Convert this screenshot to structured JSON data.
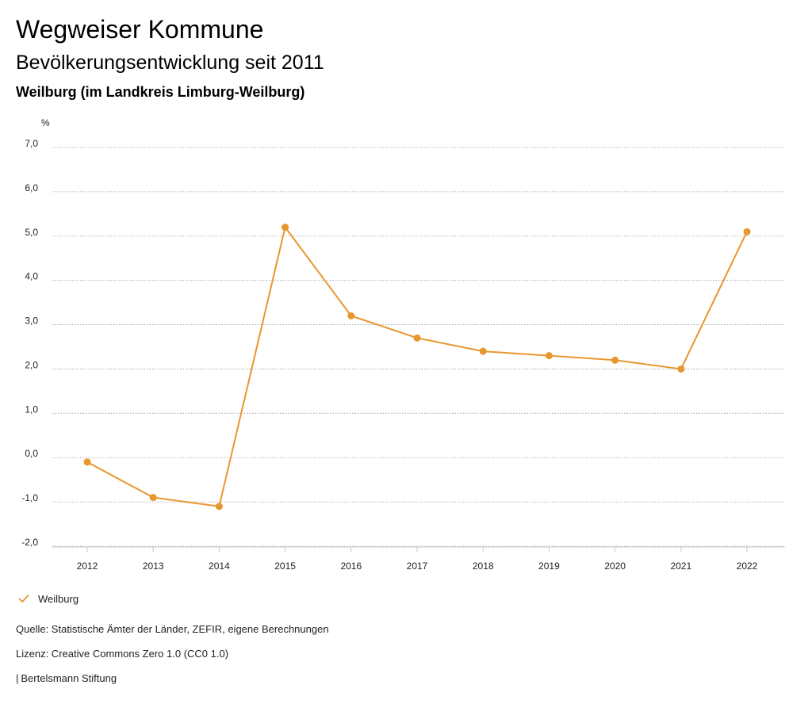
{
  "header": {
    "title": "Wegweiser Kommune",
    "subtitle": "Bevölkerungsentwicklung seit 2011",
    "region": "Weilburg (im Landkreis Limburg-Weilburg)"
  },
  "chart_data": {
    "type": "line",
    "title": "Bevölkerungsentwicklung seit 2011",
    "ylabel": "%",
    "xlabel": "",
    "categories": [
      "2012",
      "2013",
      "2014",
      "2015",
      "2016",
      "2017",
      "2018",
      "2019",
      "2020",
      "2021",
      "2022"
    ],
    "series": [
      {
        "name": "Weilburg",
        "color": "#E8962E",
        "values": [
          -0.1,
          -0.9,
          -1.1,
          5.2,
          3.2,
          2.7,
          2.4,
          2.3,
          2.2,
          2.0,
          5.1
        ]
      }
    ],
    "ylim": [
      -2.0,
      7.0
    ],
    "yticks": [
      -2.0,
      -1.0,
      0.0,
      1.0,
      2.0,
      3.0,
      4.0,
      5.0,
      6.0,
      7.0
    ],
    "ytick_labels": [
      "-2,0",
      "-1,0",
      "0,0",
      "1,0",
      "2,0",
      "3,0",
      "4,0",
      "5,0",
      "6,0",
      "7,0"
    ],
    "grid": true,
    "legend_position": "bottom-left"
  },
  "legend": {
    "label": "Weilburg"
  },
  "footer": {
    "source": "Quelle: Statistische Ämter der Länder, ZEFIR, eigene Berechnungen",
    "license": "Lizenz: Creative Commons Zero 1.0 (CC0 1.0)",
    "credit_separator": "|",
    "credit": "Bertelsmann Stiftung"
  },
  "colors": {
    "accent": "#E8962E",
    "grid": "#9a9a9a",
    "text": "#222222"
  }
}
